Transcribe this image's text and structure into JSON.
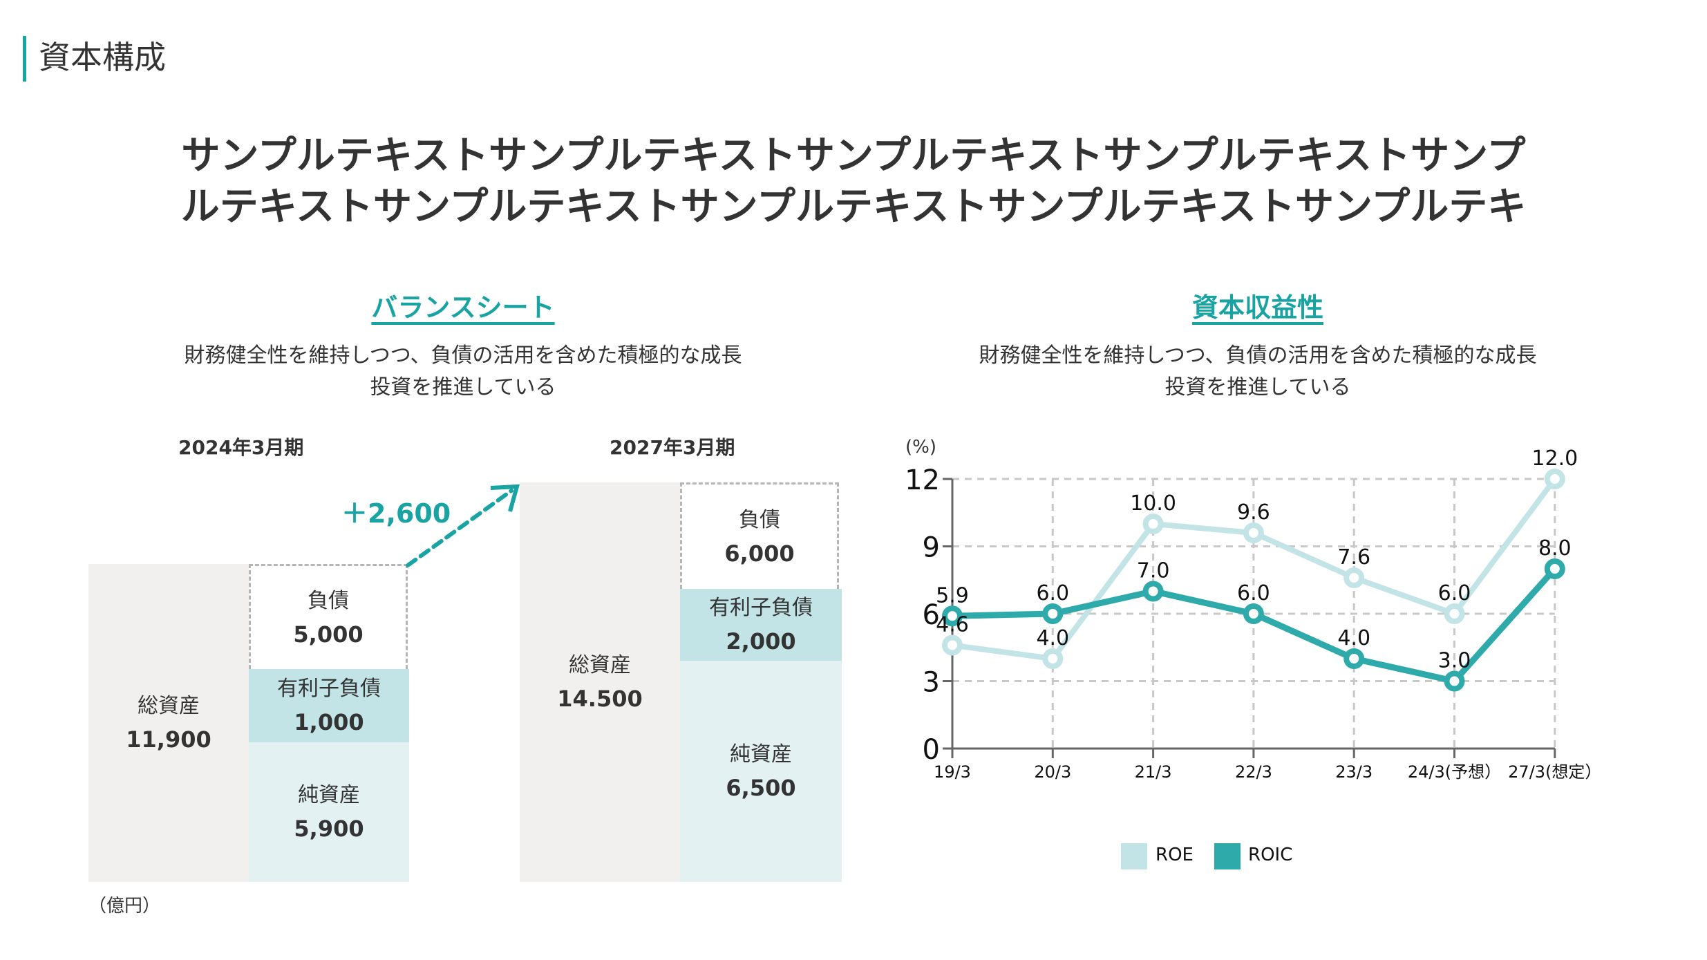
{
  "header": {
    "title": "資本構成"
  },
  "lead": {
    "line1": "サンプルテキストサンプルテキストサンプルテキストサンプルテキストサンプ",
    "line2": "ルテキストサンプルテキストサンプルテキストサンプルテキストサンプルテキ"
  },
  "balance_sheet": {
    "heading": "バランスシート",
    "desc_line1": "財務健全性を維持しつつ、負債の活用を含めた積極的な成長",
    "desc_line2": "投資を推進している",
    "unit": "（億円）",
    "delta": "＋2,600",
    "periods": [
      {
        "label": "2024年3月期",
        "total_assets": {
          "label": "総資産",
          "value": "11,900"
        },
        "liabilities": {
          "label": "負債",
          "value": "5,000"
        },
        "interest_bearing_debt": {
          "label": "有利子負債",
          "value": "1,000"
        },
        "net_assets": {
          "label": "純資産",
          "value": "5,900"
        }
      },
      {
        "label": "2027年3月期",
        "total_assets": {
          "label": "総資産",
          "value": "14.500"
        },
        "liabilities": {
          "label": "負債",
          "value": "6,000"
        },
        "interest_bearing_debt": {
          "label": "有利子負債",
          "value": "2,000"
        },
        "net_assets": {
          "label": "純資産",
          "value": "6,500"
        }
      }
    ]
  },
  "profitability": {
    "heading": "資本収益性",
    "desc_line1": "財務健全性を維持しつつ、負債の活用を含めた積極的な成長",
    "desc_line2": "投資を推進している"
  },
  "colors": {
    "accent": "#1aa3a3",
    "roe": "#c2e4e6",
    "roic": "#2eaaab",
    "grid": "#c8c8c8",
    "axis": "#666666"
  },
  "chart_data": {
    "type": "line",
    "title": "資本収益性",
    "ylabel": "(%)",
    "xlabel": "",
    "categories": [
      "19/3",
      "20/3",
      "21/3",
      "22/3",
      "23/3",
      "24/3(予想）",
      "27/3(想定）"
    ],
    "ylim": [
      0,
      12
    ],
    "yticks": [
      0,
      3,
      6,
      9,
      12
    ],
    "grid": true,
    "legend_position": "bottom-center",
    "series": [
      {
        "name": "ROE",
        "values": [
          4.6,
          4.0,
          10.0,
          9.6,
          7.6,
          6.0,
          12.0
        ],
        "labels": [
          "4.6",
          "4.0",
          "10.0",
          "9.6",
          "7.6",
          "6.0",
          "12.0"
        ]
      },
      {
        "name": "ROIC",
        "values": [
          5.9,
          6.0,
          7.0,
          6.0,
          4.0,
          3.0,
          8.0
        ],
        "labels": [
          "5.9",
          "6.0",
          "7.0",
          "6.0",
          "4.0",
          "3.0",
          "8.0"
        ]
      }
    ]
  }
}
